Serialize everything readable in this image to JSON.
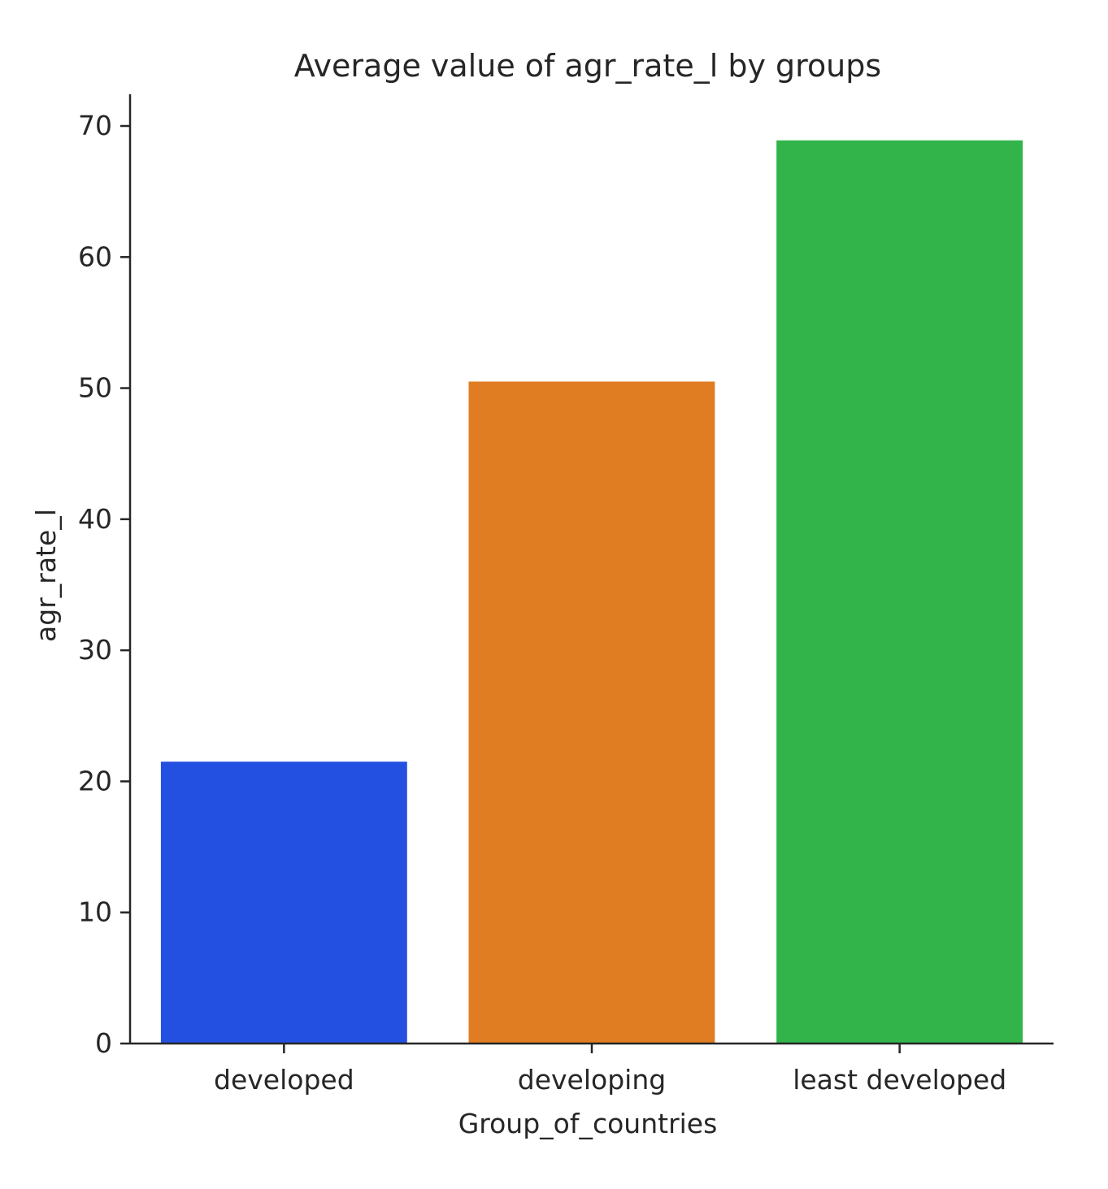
{
  "chart_data": {
    "type": "bar",
    "title": "Average value of agr_rate_l by groups",
    "xlabel": "Group_of_countries",
    "ylabel": "agr_rate_l",
    "categories": [
      "developed",
      "developing",
      "least developed"
    ],
    "values": [
      21.5,
      50.5,
      68.9
    ],
    "colors": [
      "#2350e0",
      "#e07d22",
      "#32b44a"
    ],
    "ylim": [
      0,
      72.5
    ],
    "yticks": [
      0,
      10,
      20,
      30,
      40,
      50,
      60,
      70
    ],
    "ytick_labels": [
      "0",
      "10",
      "20",
      "30",
      "40",
      "50",
      "60",
      "70"
    ],
    "grid": false,
    "spines": "left-bottom"
  }
}
